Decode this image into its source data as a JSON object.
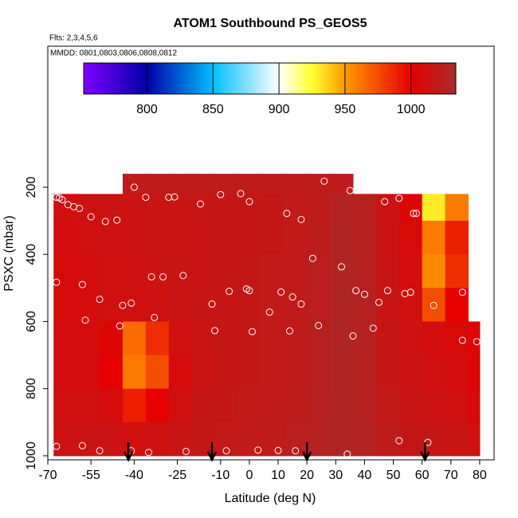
{
  "chart_data": {
    "type": "heatmap",
    "title": "ATOM1 Southbound PS_GEOS5",
    "subtitle": "Flts: 2,3,4,5,6",
    "annotation": "MMDD: 0801,0803,0806,0808,0812",
    "xlabel": "Latitude (deg N)",
    "ylabel": "PSXC (mbar)",
    "xlim": [
      -70,
      85
    ],
    "ylim": [
      1012,
      -220
    ],
    "xticks": [
      -70,
      -55,
      -40,
      -25,
      -10,
      0,
      10,
      20,
      30,
      40,
      50,
      60,
      70,
      80
    ],
    "yticks": [
      200,
      400,
      600,
      800,
      1000
    ],
    "x_edges": [
      -68,
      -60,
      -52,
      -44,
      -36,
      -28,
      -20,
      -12,
      -4,
      4,
      12,
      20,
      28,
      36,
      44,
      52,
      60,
      68,
      76,
      80
    ],
    "y_edges": [
      160,
      220,
      300,
      400,
      500,
      600,
      700,
      800,
      900,
      1000
    ],
    "z": [
      [
        null,
        null,
        null,
        1022,
        1022,
        1022,
        1022,
        1022,
        1022,
        1022,
        1022,
        1022,
        1022,
        null,
        null,
        null,
        null,
        null,
        null
      ],
      [
        1012,
        1014,
        1015,
        1015,
        1016,
        1016,
        1017,
        1018,
        1018,
        1019,
        1020,
        1022,
        1028,
        1025,
        1015,
        1005,
        930,
        960,
        null
      ],
      [
        1010,
        1012,
        1014,
        1015,
        1016,
        1016,
        1017,
        1018,
        1018,
        1019,
        1020,
        1023,
        1030,
        1026,
        1016,
        1008,
        960,
        990,
        null
      ],
      [
        1008,
        1010,
        1012,
        1014,
        1015,
        1016,
        1017,
        1018,
        1019,
        1020,
        1021,
        1024,
        1030,
        1027,
        1017,
        1010,
        955,
        985,
        null
      ],
      [
        1008,
        1010,
        1012,
        1012,
        1014,
        1016,
        1017,
        1018,
        1019,
        1020,
        1021,
        1024,
        1030,
        1027,
        1017,
        1012,
        975,
        1000,
        null
      ],
      [
        1010,
        1010,
        1005,
        965,
        985,
        1012,
        1016,
        1018,
        1019,
        1020,
        1022,
        1025,
        1030,
        1027,
        1018,
        1014,
        1010,
        1008,
        1005
      ],
      [
        1010,
        1010,
        1000,
        960,
        975,
        1008,
        1016,
        1018,
        1019,
        1020,
        1022,
        1025,
        1030,
        1027,
        1018,
        1015,
        1012,
        1010,
        1006
      ],
      [
        1012,
        1012,
        1010,
        990,
        1000,
        1012,
        1018,
        1019,
        1020,
        1021,
        1023,
        1026,
        1030,
        1027,
        1020,
        1017,
        1015,
        1012,
        1008
      ],
      [
        1015,
        1015,
        1015,
        1012,
        1014,
        1016,
        1019,
        1020,
        1021,
        1022,
        1024,
        1027,
        1030,
        1028,
        1022,
        1019,
        1018,
        1016,
        1012
      ]
    ],
    "colorscale": [
      [
        752,
        "#7f00ff"
      ],
      [
        800,
        "#0000a8"
      ],
      [
        850,
        "#00bfff"
      ],
      [
        900,
        "#ffffff"
      ],
      [
        925,
        "#ffff30"
      ],
      [
        950,
        "#ff9900"
      ],
      [
        1000,
        "#e60000"
      ],
      [
        1034,
        "#a82a2a"
      ]
    ],
    "clim": [
      752,
      1034
    ],
    "cticks": [
      800,
      850,
      900,
      950,
      1000
    ],
    "points": {
      "color": "#ffffff",
      "x": [
        -67,
        -66,
        -65,
        -63,
        -61,
        -59,
        -55,
        -50,
        -46,
        -40,
        -36,
        -28,
        -26,
        -17,
        -10,
        -3,
        0,
        13,
        18,
        26,
        35,
        47,
        52,
        57,
        58,
        -67,
        -58,
        -52,
        -44,
        -41,
        -34,
        -30,
        -23,
        -13,
        -7,
        -1,
        0,
        7,
        11,
        15,
        18,
        22,
        32,
        37,
        40,
        45,
        48,
        56,
        64,
        74,
        -67,
        -58,
        -52,
        -41,
        -35,
        -22,
        -8,
        3,
        10,
        16,
        34,
        52,
        62,
        -57,
        -45,
        -33,
        -12,
        1,
        14,
        24,
        36,
        43,
        54,
        74,
        79
      ],
      "y": [
        230,
        232,
        237,
        252,
        258,
        263,
        288,
        302,
        298,
        200,
        230,
        230,
        229,
        250,
        222,
        219,
        243,
        278,
        296,
        182,
        210,
        243,
        233,
        278,
        278,
        483,
        490,
        534,
        552,
        545,
        467,
        467,
        463,
        548,
        510,
        503,
        508,
        572,
        512,
        527,
        548,
        412,
        437,
        508,
        519,
        543,
        508,
        513,
        552,
        513,
        972,
        970,
        985,
        985,
        990,
        987,
        985,
        983,
        984,
        985,
        995,
        955,
        960,
        596,
        613,
        588,
        627,
        630,
        628,
        612,
        643,
        620,
        517,
        656,
        660
      ]
    },
    "arrows_x": [
      -42,
      -13,
      20,
      61
    ]
  }
}
